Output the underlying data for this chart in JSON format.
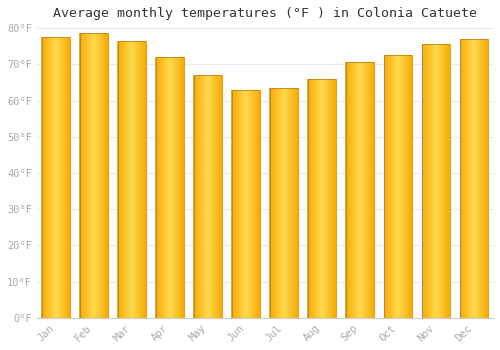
{
  "title": "Average monthly temperatures (°F ) in Colonia Catuete",
  "months": [
    "Jan",
    "Feb",
    "Mar",
    "Apr",
    "May",
    "Jun",
    "Jul",
    "Aug",
    "Sep",
    "Oct",
    "Nov",
    "Dec"
  ],
  "values": [
    77.5,
    78.5,
    76.5,
    72.0,
    67.0,
    63.0,
    63.5,
    66.0,
    70.5,
    72.5,
    75.5,
    77.0
  ],
  "bar_color_center": "#FFD04A",
  "bar_color_edge": "#F5A800",
  "bar_edge_color": "#C87A00",
  "background_color": "#FFFFFF",
  "plot_bg_color": "#FFFFFF",
  "grid_color": "#E8E8F0",
  "ylim": [
    0,
    80
  ],
  "yticks": [
    0,
    10,
    20,
    30,
    40,
    50,
    60,
    70,
    80
  ],
  "ytick_labels": [
    "0°F",
    "10°F",
    "20°F",
    "30°F",
    "40°F",
    "50°F",
    "60°F",
    "70°F",
    "80°F"
  ],
  "title_fontsize": 9.5,
  "tick_fontsize": 7.5,
  "tick_color": "#AAAAAA",
  "axis_color": "#CCCCCC",
  "bar_width": 0.75
}
